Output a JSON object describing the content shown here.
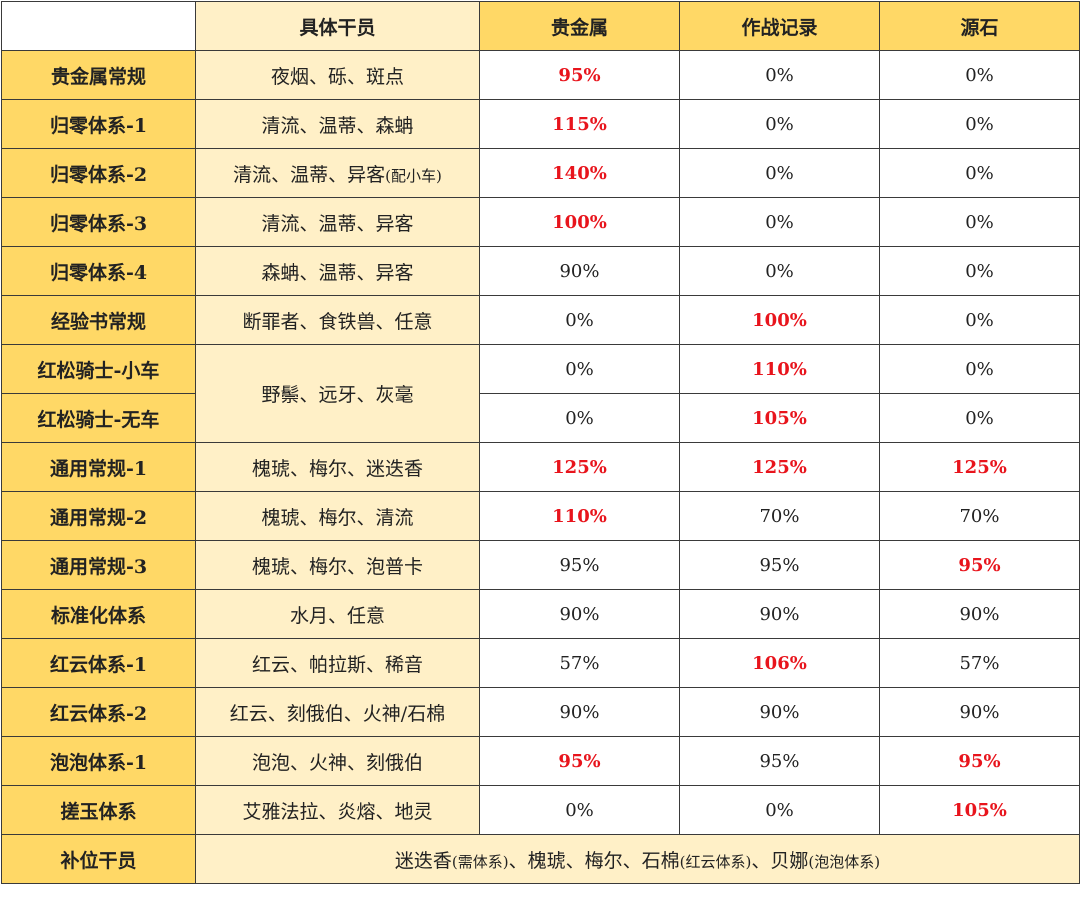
{
  "headers": {
    "members": "具体干员",
    "gold": "贵金属",
    "exp": "作战记录",
    "stone": "源石"
  },
  "rows": [
    {
      "name": "贵金属常规",
      "members": "夜烟、砾、斑点",
      "gold": "95%",
      "exp": "0%",
      "stone": "0%"
    },
    {
      "name": "归零体系-1",
      "members": "清流、温蒂、森蚺",
      "gold": "115%",
      "exp": "0%",
      "stone": "0%"
    },
    {
      "name": "归零体系-2",
      "members": "清流、温蒂、异客",
      "members_note": "(配小车)",
      "gold": "140%",
      "exp": "0%",
      "stone": "0%"
    },
    {
      "name": "归零体系-3",
      "members": "清流、温蒂、异客",
      "gold": "100%",
      "exp": "0%",
      "stone": "0%"
    },
    {
      "name": "归零体系-4",
      "members": "森蚺、温蒂、异客",
      "gold": "90%",
      "exp": "0%",
      "stone": "0%"
    },
    {
      "name": "经验书常规",
      "members": "断罪者、食铁兽、任意",
      "gold": "0%",
      "exp": "100%",
      "stone": "0%"
    },
    {
      "name": "红松骑士-小车",
      "members": "野鬃、远牙、灰毫",
      "gold": "0%",
      "exp": "110%",
      "stone": "0%"
    },
    {
      "name": "红松骑士-无车",
      "gold": "0%",
      "exp": "105%",
      "stone": "0%"
    },
    {
      "name": "通用常规-1",
      "members": "槐琥、梅尔、迷迭香",
      "gold": "125%",
      "exp": "125%",
      "stone": "125%"
    },
    {
      "name": "通用常规-2",
      "members": "槐琥、梅尔、清流",
      "gold": "110%",
      "exp": "70%",
      "stone": "70%"
    },
    {
      "name": "通用常规-3",
      "members": "槐琥、梅尔、泡普卡",
      "gold": "95%",
      "exp": "95%",
      "stone": "95%"
    },
    {
      "name": "标准化体系",
      "members": "水月、任意",
      "gold": "90%",
      "exp": "90%",
      "stone": "90%"
    },
    {
      "name": "红云体系-1",
      "members": "红云、帕拉斯、稀音",
      "gold": "57%",
      "exp": "106%",
      "stone": "57%"
    },
    {
      "name": "红云体系-2",
      "members": "红云、刻俄伯、火神/石棉",
      "gold": "90%",
      "exp": "90%",
      "stone": "90%"
    },
    {
      "name": "泡泡体系-1",
      "members": "泡泡、火神、刻俄伯",
      "gold": "95%",
      "exp": "95%",
      "stone": "95%"
    },
    {
      "name": "搓玉体系",
      "members": "艾雅法拉、炎熔、地灵",
      "gold": "0%",
      "exp": "0%",
      "stone": "105%"
    }
  ],
  "footer": {
    "name": "补位干员",
    "part1": "迷迭香",
    "note1": "(需体系)",
    "part2": "、槐琥、梅尔、石棉",
    "note2": "(红云体系)",
    "part3": "、贝娜",
    "note3": "(泡泡体系)"
  },
  "highlight_color": "#e8141c",
  "name_bg": "#ffd866",
  "members_bg": "#fff0c7"
}
